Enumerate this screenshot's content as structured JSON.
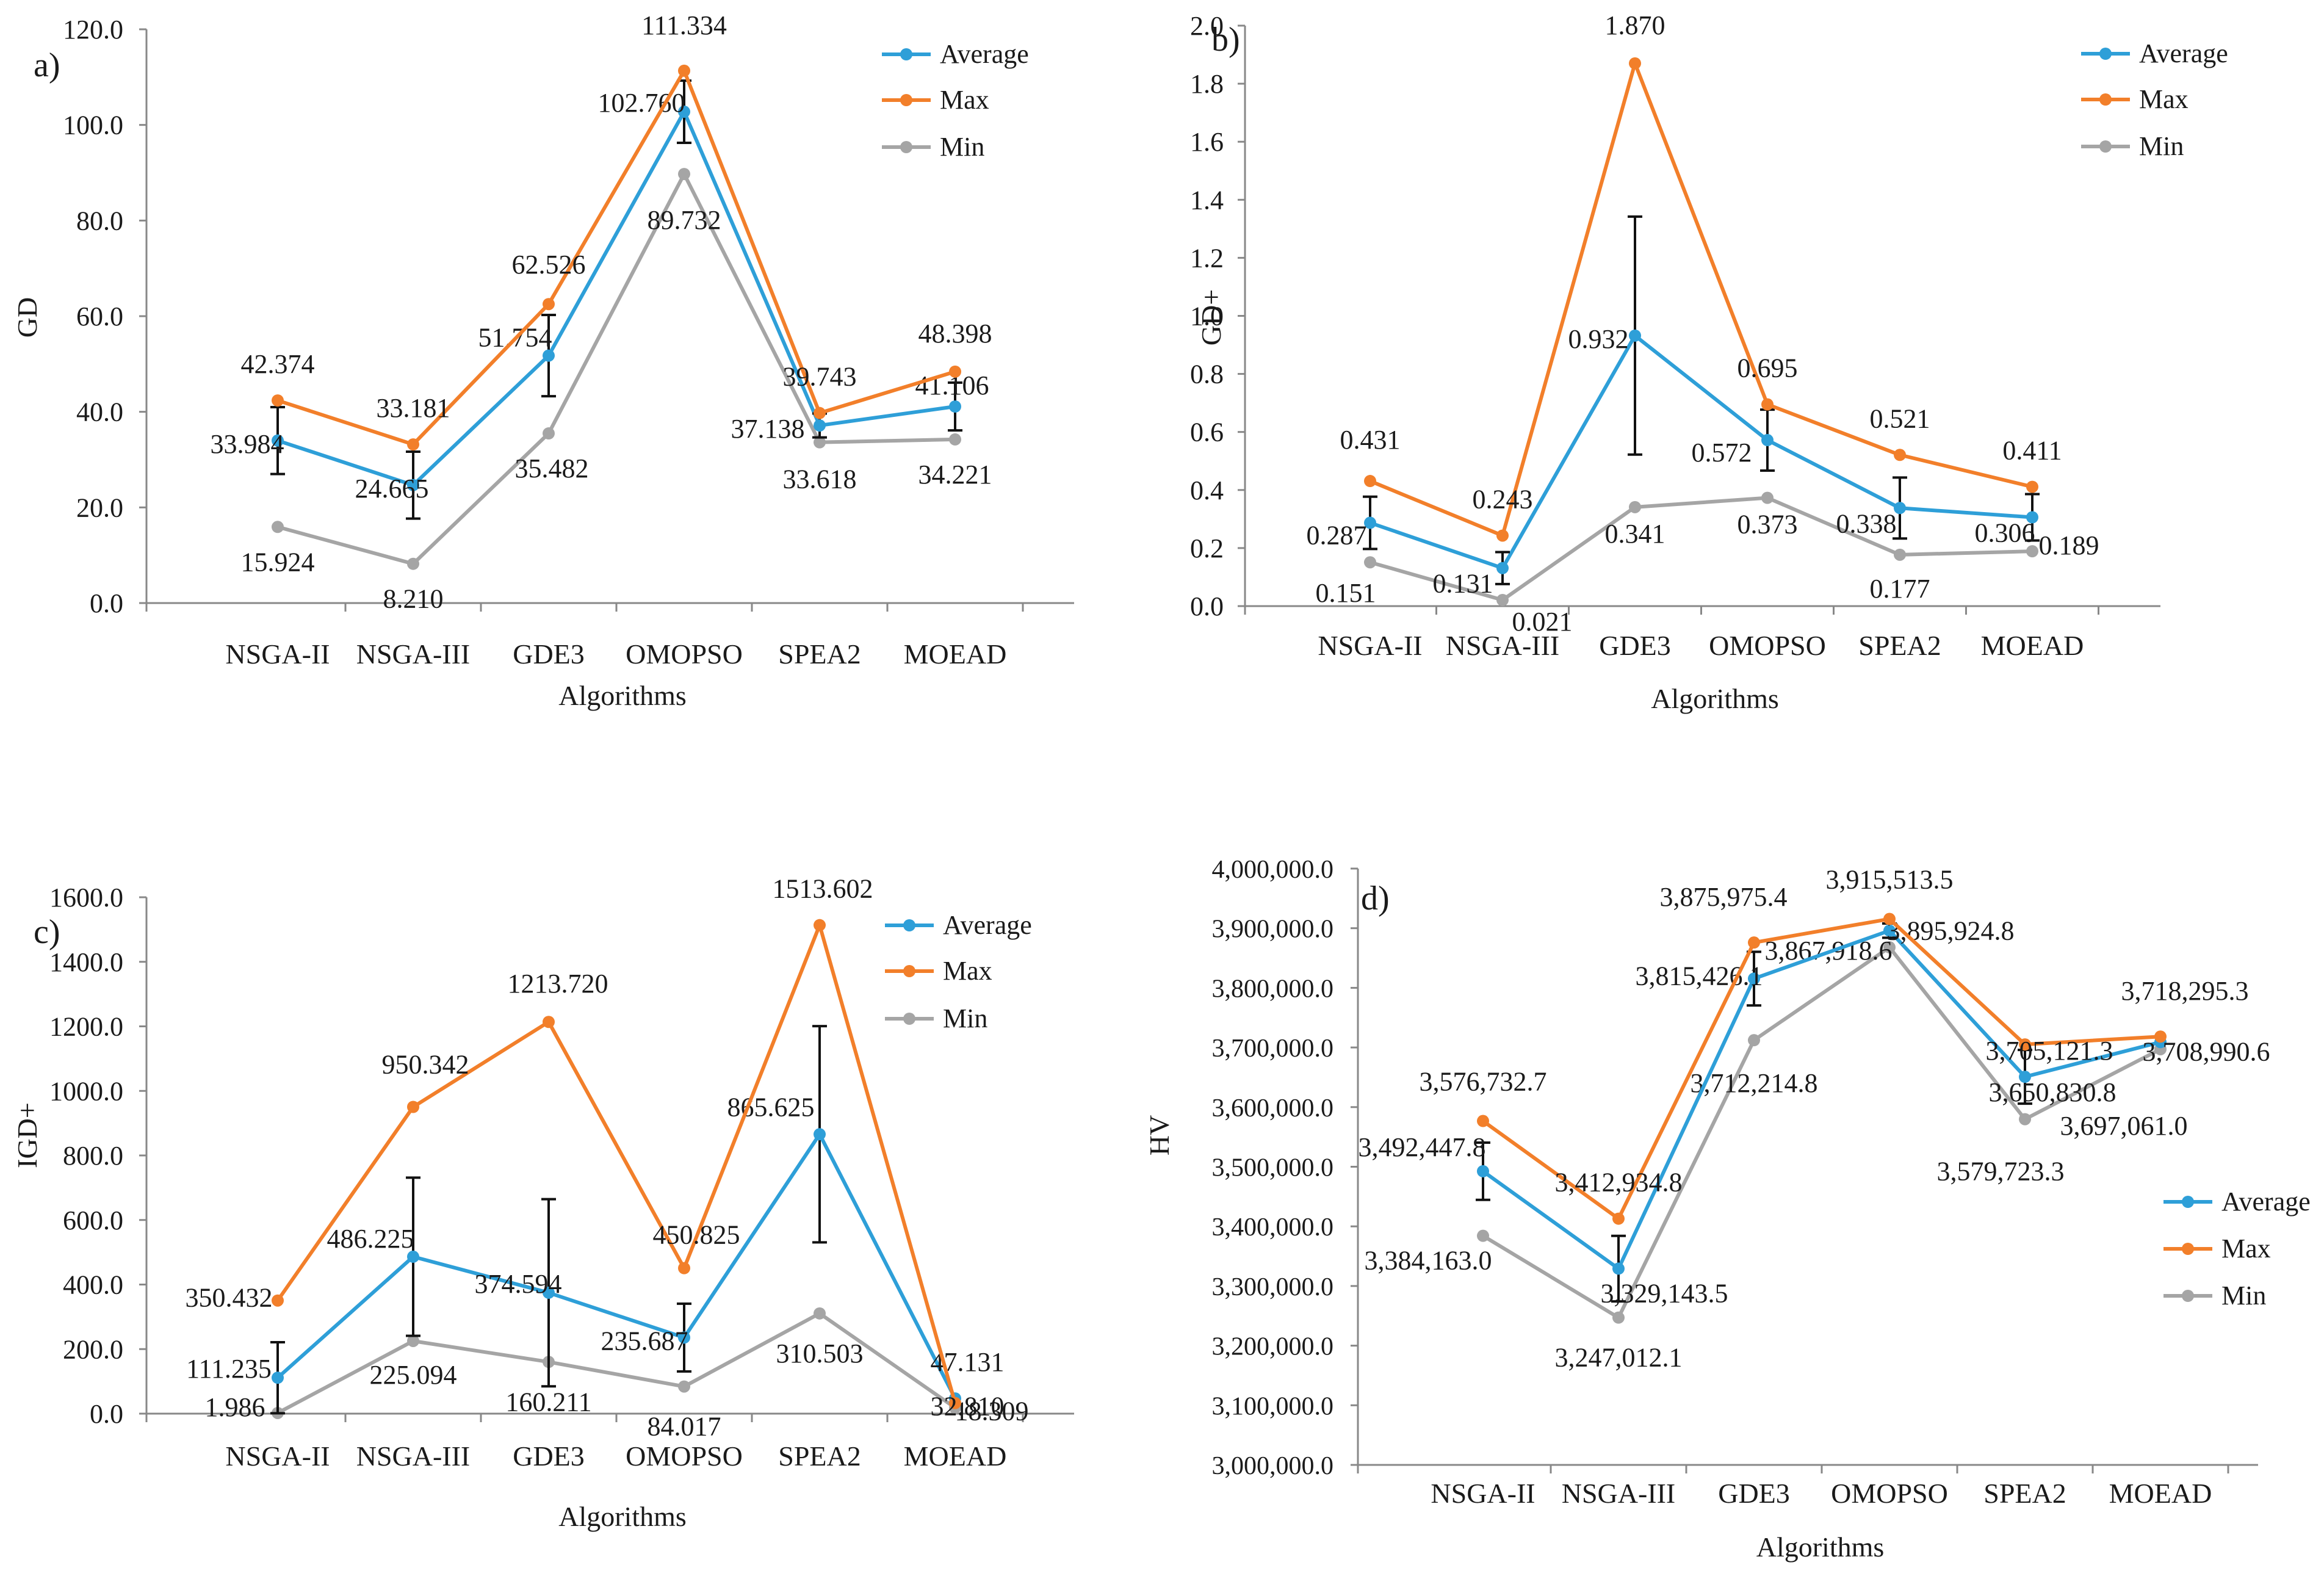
{
  "figure": {
    "background": "#ffffff"
  },
  "series_colors": {
    "Average": "#2e9fd8",
    "Max": "#f27f2a",
    "Min": "#a5a5a5",
    "error_bar": "#111111"
  },
  "chart_data": [
    {
      "id": "a",
      "type": "line",
      "panel_label": "a)",
      "title": "",
      "xlabel": "Algorithms",
      "ylabel": "GD",
      "categories": [
        "NSGA-II",
        "NSGA-III",
        "GDE3",
        "OMOPSO",
        "SPEA2",
        "MOEAD"
      ],
      "ylim": [
        0,
        120
      ],
      "yticks": [
        "0.0",
        "20.0",
        "40.0",
        "60.0",
        "80.0",
        "100.0",
        "120.0"
      ],
      "legend_position": "top-right",
      "series": [
        {
          "name": "Average",
          "values": [
            33.984,
            24.665,
            51.754,
            102.76,
            37.138,
            41.106
          ],
          "labels": [
            "33.984",
            "24.665",
            "51.754",
            "102.760",
            "37.138",
            "41.106"
          ],
          "error": [
            7,
            7,
            8.5,
            6.5,
            2.5,
            5
          ]
        },
        {
          "name": "Max",
          "values": [
            42.374,
            33.181,
            62.526,
            111.334,
            39.743,
            48.398
          ],
          "labels": [
            "42.374",
            "33.181",
            "62.526",
            "111.334",
            "39.743",
            "48.398"
          ]
        },
        {
          "name": "Min",
          "values": [
            15.924,
            8.21,
            35.482,
            89.732,
            33.618,
            34.221
          ],
          "labels": [
            "15.924",
            "8.210",
            "35.482",
            "89.732",
            "33.618",
            "34.221"
          ]
        }
      ]
    },
    {
      "id": "b",
      "type": "line",
      "panel_label": "b)",
      "title": "",
      "xlabel": "Algorithms",
      "ylabel": "GD+",
      "categories": [
        "NSGA-II",
        "NSGA-III",
        "GDE3",
        "OMOPSO",
        "SPEA2",
        "MOEAD"
      ],
      "ylim": [
        0,
        2
      ],
      "yticks": [
        "0.0",
        "0.2",
        "0.4",
        "0.6",
        "0.8",
        "1.0",
        "1.2",
        "1.4",
        "1.6",
        "1.8",
        "2.0"
      ],
      "legend_position": "top-right",
      "series": [
        {
          "name": "Average",
          "values": [
            0.287,
            0.131,
            0.932,
            0.572,
            0.338,
            0.306
          ],
          "labels": [
            "0.287",
            "0.131",
            "0.932",
            "0.572",
            "0.338",
            "0.306"
          ],
          "error": [
            0.09,
            0.055,
            0.41,
            0.105,
            0.105,
            0.08
          ]
        },
        {
          "name": "Max",
          "values": [
            0.431,
            0.243,
            1.87,
            0.695,
            0.521,
            0.411
          ],
          "labels": [
            "0.431",
            "0.243",
            "1.870",
            "0.695",
            "0.521",
            "0.411"
          ]
        },
        {
          "name": "Min",
          "values": [
            0.151,
            0.021,
            0.341,
            0.373,
            0.177,
            0.189
          ],
          "labels": [
            "0.151",
            "0.021",
            "0.341",
            "0.373",
            "0.177",
            "0.189"
          ]
        }
      ]
    },
    {
      "id": "c",
      "type": "line",
      "panel_label": "c)",
      "title": "",
      "xlabel": "Algorithms",
      "ylabel": "IGD+",
      "categories": [
        "NSGA-II",
        "NSGA-III",
        "GDE3",
        "OMOPSO",
        "SPEA2",
        "MOEAD"
      ],
      "ylim": [
        0,
        1600
      ],
      "yticks": [
        "0.0",
        "200.0",
        "400.0",
        "600.0",
        "800.0",
        "1000.0",
        "1200.0",
        "1400.0",
        "1600.0"
      ],
      "legend_position": "top-right",
      "series": [
        {
          "name": "Average",
          "values": [
            111.235,
            486.225,
            374.594,
            235.687,
            865.625,
            47.131
          ],
          "labels": [
            "111.235",
            "486.225",
            "374.594",
            "235.687",
            "865.625",
            "47.131"
          ],
          "error": [
            110,
            245,
            290,
            105,
            335,
            0
          ]
        },
        {
          "name": "Max",
          "values": [
            350.432,
            950.342,
            1213.72,
            450.825,
            1513.602,
            32.81
          ],
          "labels": [
            "350.432",
            "950.342",
            "1213.720",
            "450.825",
            "1513.602",
            "32.810"
          ]
        },
        {
          "name": "Min",
          "values": [
            1.986,
            225.094,
            160.211,
            84.017,
            310.503,
            18.309
          ],
          "labels": [
            "1.986",
            "225.094",
            "160.211",
            "84.017",
            "310.503",
            "18.309"
          ]
        }
      ]
    },
    {
      "id": "d",
      "type": "line",
      "panel_label": "d)",
      "title": "",
      "xlabel": "Algorithms",
      "ylabel": "HV",
      "categories": [
        "NSGA-II",
        "NSGA-III",
        "GDE3",
        "OMOPSO",
        "SPEA2",
        "MOEAD"
      ],
      "ylim": [
        3000000,
        4000000
      ],
      "yticks": [
        "3,000,000.0",
        "3,100,000.0",
        "3,200,000.0",
        "3,300,000.0",
        "3,400,000.0",
        "3,500,000.0",
        "3,600,000.0",
        "3,700,000.0",
        "3,800,000.0",
        "3,900,000.0",
        "4,000,000.0"
      ],
      "legend_position": "right",
      "series": [
        {
          "name": "Average",
          "values": [
            3492447.8,
            3329143.5,
            3815426.1,
            3895924.8,
            3650830.8,
            3708990.6
          ],
          "labels": [
            "3,492,447.8",
            "3,329,143.5",
            "3,815,426.1",
            "3,895,924.8",
            "3,650,830.8",
            "3,708,990.6"
          ],
          "error": [
            48000,
            55000,
            45000,
            12000,
            45000,
            0
          ]
        },
        {
          "name": "Max",
          "values": [
            3576732.7,
            3412934.8,
            3875975.4,
            3915513.5,
            3705121.3,
            3718295.3
          ],
          "labels": [
            "3,576,732.7",
            "3,412,934.8",
            "3,875,975.4",
            "3,915,513.5",
            "3,705,121.3",
            "3,718,295.3"
          ]
        },
        {
          "name": "Min",
          "values": [
            3384163.0,
            3247012.1,
            3712214.8,
            3867918.6,
            3579723.3,
            3697061.0
          ],
          "labels": [
            "3,384,163.0",
            "3,247,012.1",
            "3,712,214.8",
            "3,867,918.6",
            "3,579,723.3",
            "3,697,061.0"
          ]
        }
      ]
    }
  ]
}
